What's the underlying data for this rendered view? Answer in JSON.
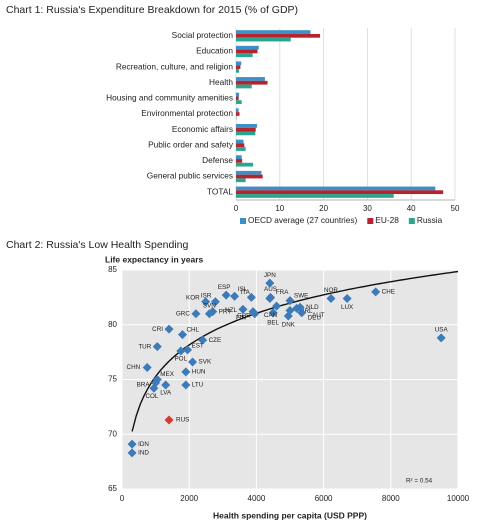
{
  "chart_data": [
    {
      "type": "hbar",
      "title": "Chart 1: Russia's Expenditure Breakdown for 2015 (% of GDP)",
      "categories": [
        "Social protection",
        "Education",
        "Recreation, culture, and religion",
        "Health",
        "Housing and community amenities",
        "Environmental protection",
        "Economic affairs",
        "Public order and safety",
        "Defense",
        "General public services",
        "TOTAL"
      ],
      "series": [
        {
          "name": "OECD average (27 countries)",
          "color": "#3d8fc6",
          "values": [
            17,
            5.2,
            1.2,
            6.6,
            0.7,
            0.6,
            4.8,
            1.7,
            1.3,
            5.8,
            45.5
          ]
        },
        {
          "name": "EU-28",
          "color": "#b5232f",
          "values": [
            19.2,
            4.9,
            1.0,
            7.2,
            0.6,
            0.8,
            4.5,
            1.9,
            1.4,
            6.1,
            47.3
          ]
        },
        {
          "name": "Russia",
          "color": "#2ba58e",
          "values": [
            12.5,
            3.8,
            0.7,
            3.6,
            1.3,
            0.1,
            4.4,
            2.2,
            3.9,
            2.2,
            36
          ]
        }
      ],
      "xlim": [
        0,
        50
      ],
      "xticks": [
        0,
        10,
        20,
        30,
        40,
        50
      ],
      "grid": true,
      "legend": "bottom"
    },
    {
      "type": "scatter",
      "title": "Chart 2: Russia's Low Health Spending",
      "y_label": "Life expectancy in years",
      "x_label": "Health spending per capita (USD PPP)",
      "annotation": "R² = 0.54",
      "trendline": "log",
      "color": "#3d7ab8",
      "labels": [
        "JPN",
        "ESP",
        "ITA",
        "FRA",
        "ISR",
        "KOR",
        "AUS",
        "ISL",
        "SWE",
        "NOR",
        "CHE",
        "LUX",
        "NLD",
        "IRL",
        "AUT",
        "DEU",
        "DNK",
        "BEL",
        "CAN",
        "FIN",
        "GBR",
        "NZL",
        "PRT",
        "SVN",
        "GRC",
        "CRI",
        "CHL",
        "CZE",
        "TUR",
        "POL",
        "EST",
        "SVK",
        "HUN",
        "CHN",
        "MEX",
        "BRA",
        "LVA",
        "LTU",
        "COL",
        "RUS",
        "IDN",
        "IND",
        "USA"
      ],
      "x": [
        4400,
        3100,
        3350,
        4400,
        2780,
        2490,
        4420,
        3850,
        5000,
        6220,
        7550,
        6700,
        5300,
        5200,
        5000,
        5350,
        4950,
        4500,
        4600,
        3900,
        3950,
        3600,
        2700,
        2600,
        2200,
        1400,
        1800,
        2400,
        1050,
        1750,
        1950,
        2100,
        1900,
        750,
        1050,
        1000,
        1300,
        1900,
        950,
        1400,
        300,
        300,
        9500
      ],
      "y": [
        83.8,
        82.7,
        82.6,
        82.4,
        82.1,
        82.1,
        82.5,
        82.5,
        82.2,
        82.4,
        83.0,
        82.4,
        81.6,
        81.5,
        81.3,
        81.1,
        80.8,
        81.1,
        81.7,
        81.2,
        81.0,
        81.4,
        81.2,
        81.0,
        81.0,
        79.6,
        79.1,
        78.6,
        78.0,
        77.6,
        77.7,
        76.6,
        75.7,
        76.1,
        75.0,
        74.7,
        74.5,
        74.5,
        74.2,
        71.3,
        69.1,
        68.3,
        78.8
      ],
      "point_colors": [
        "#3d7ab8",
        "#3d7ab8",
        "#3d7ab8",
        "#3d7ab8",
        "#3d7ab8",
        "#3d7ab8",
        "#3d7ab8",
        "#3d7ab8",
        "#3d7ab8",
        "#3d7ab8",
        "#3d7ab8",
        "#3d7ab8",
        "#3d7ab8",
        "#3d7ab8",
        "#3d7ab8",
        "#3d7ab8",
        "#3d7ab8",
        "#3d7ab8",
        "#3d7ab8",
        "#3d7ab8",
        "#3d7ab8",
        "#3d7ab8",
        "#3d7ab8",
        "#3d7ab8",
        "#3d7ab8",
        "#3d7ab8",
        "#3d7ab8",
        "#3d7ab8",
        "#3d7ab8",
        "#3d7ab8",
        "#3d7ab8",
        "#3d7ab8",
        "#3d7ab8",
        "#3d7ab8",
        "#3d7ab8",
        "#3d7ab8",
        "#3d7ab8",
        "#3d7ab8",
        "#3d7ab8",
        "#d43a2f",
        "#3d7ab8",
        "#3d7ab8",
        "#3d7ab8"
      ],
      "xlim": [
        0,
        10000
      ],
      "xticks": [
        0,
        2000,
        4000,
        6000,
        8000,
        10000
      ],
      "ylim": [
        65,
        85
      ],
      "yticks": [
        65,
        70,
        75,
        80,
        85
      ],
      "grid": true
    }
  ]
}
